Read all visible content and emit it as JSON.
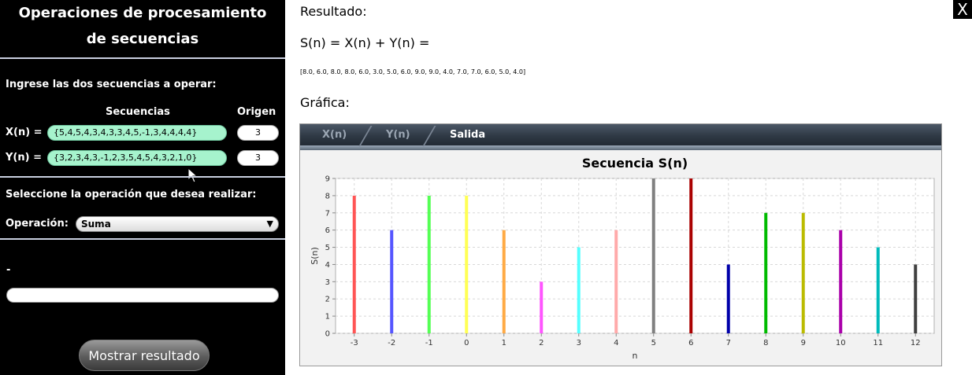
{
  "left": {
    "title_line1": "Operaciones de procesamiento",
    "title_line2": "de secuencias",
    "prompt": "Ingrese las dos secuencias a operar:",
    "col_sequences": "Secuencias",
    "col_origin": "Origen",
    "x_label": "X(n) =",
    "x_value": "{5,4,5,4,3,4,3,3,4,5,-1,3,4,4,4,4}",
    "x_origin": "3",
    "y_label": "Y(n) =",
    "y_value": "{3,2,3,4,3,-1,2,3,5,4,5,4,3,2,1,0}",
    "y_origin": "3",
    "op_prompt": "Seleccione la operación que desea realizar:",
    "op_label": "Operación:",
    "op_selected": "Suma",
    "result_dash": "-",
    "result_value": "",
    "show_button": "Mostrar resultado"
  },
  "right": {
    "result_heading": "Resultado:",
    "formula": "S(n) = X(n) + Y(n) =",
    "result_array": "[8.0, 6.0, 8.0, 8.0, 6.0, 3.0, 5.0, 6.0, 9.0, 9.0, 4.0, 7.0, 7.0, 6.0, 5.0, 4.0]",
    "graph_heading": "Gráfica:",
    "close_label": "X"
  },
  "tabs": [
    {
      "label": "X(n)",
      "active": false
    },
    {
      "label": "Y(n)",
      "active": false
    },
    {
      "label": "Salida",
      "active": true
    }
  ],
  "chart_data": {
    "type": "bar",
    "title": "Secuencia S(n)",
    "xlabel": "n",
    "ylabel": "S(n)",
    "x": [
      -3,
      -2,
      -1,
      0,
      1,
      2,
      3,
      4,
      5,
      6,
      7,
      8,
      9,
      10,
      11,
      12
    ],
    "values": [
      8,
      6,
      8,
      8,
      6,
      3,
      5,
      6,
      9,
      9,
      4,
      7,
      7,
      6,
      5,
      4
    ],
    "colors": [
      "#ff5555",
      "#5555ff",
      "#55ff55",
      "#ffff55",
      "#ffaa44",
      "#ff55ff",
      "#55ffff",
      "#ffaaaa",
      "#808080",
      "#aa0000",
      "#0000aa",
      "#00bb00",
      "#bbbb00",
      "#aa00aa",
      "#00bbbb",
      "#404040"
    ],
    "ylim": [
      0,
      9
    ],
    "yticks": [
      0,
      1,
      2,
      3,
      4,
      5,
      6,
      7,
      8,
      9
    ],
    "grid": true
  }
}
